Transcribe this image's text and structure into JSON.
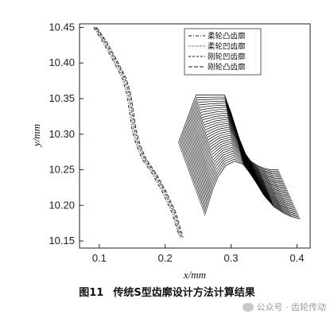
{
  "chart_data": {
    "type": "line",
    "title": "",
    "xlabel": "x/mm",
    "ylabel": "y/mm",
    "xlim": [
      0.07,
      0.42
    ],
    "ylim": [
      10.14,
      10.455
    ],
    "x_ticks": [
      "0.1",
      "0.2",
      "0.3",
      "0.4"
    ],
    "y_ticks": [
      "10.15",
      "10.20",
      "10.25",
      "10.30",
      "10.35",
      "10.40",
      "10.45"
    ],
    "legend_position": "top-right",
    "series": [
      {
        "name": "柔轮凸齿廓",
        "style": "dash-dot",
        "x": [
          0.0915,
          0.105,
          0.12,
          0.135,
          0.142,
          0.146,
          0.15,
          0.156,
          0.165,
          0.18,
          0.195,
          0.21,
          0.222
        ],
        "y": [
          10.45,
          10.43,
          10.405,
          10.378,
          10.355,
          10.33,
          10.305,
          10.285,
          10.265,
          10.245,
          10.22,
          10.19,
          10.155
        ]
      },
      {
        "name": "柔轮凹齿廓",
        "style": "dotted",
        "x": [
          0.093,
          0.107,
          0.122,
          0.137,
          0.144,
          0.148,
          0.152,
          0.158,
          0.167,
          0.182,
          0.197,
          0.212,
          0.223
        ],
        "y": [
          10.45,
          10.43,
          10.405,
          10.378,
          10.355,
          10.33,
          10.305,
          10.285,
          10.265,
          10.245,
          10.22,
          10.19,
          10.155
        ]
      },
      {
        "name": "刚轮凹齿廓",
        "style": "dashed",
        "x": [
          0.0945,
          0.109,
          0.124,
          0.139,
          0.146,
          0.15,
          0.154,
          0.16,
          0.169,
          0.184,
          0.199,
          0.214,
          0.225
        ],
        "y": [
          10.45,
          10.43,
          10.405,
          10.378,
          10.355,
          10.33,
          10.305,
          10.285,
          10.265,
          10.245,
          10.22,
          10.19,
          10.155
        ]
      },
      {
        "name": "刚轮凸齿廓",
        "style": "long-dash",
        "x": [
          0.096,
          0.111,
          0.126,
          0.141,
          0.148,
          0.152,
          0.156,
          0.162,
          0.171,
          0.186,
          0.201,
          0.216,
          0.227
        ],
        "y": [
          10.45,
          10.43,
          10.405,
          10.378,
          10.355,
          10.33,
          10.305,
          10.285,
          10.265,
          10.245,
          10.22,
          10.19,
          10.155
        ]
      }
    ],
    "envelope": {
      "count": 34,
      "template_x": [
        0.22,
        0.24,
        0.247,
        0.27,
        0.29,
        0.3,
        0.312,
        0.322,
        0.33,
        0.34,
        0.35,
        0.36,
        0.372
      ],
      "template_y": [
        10.287,
        10.338,
        10.355,
        10.355,
        10.355,
        10.33,
        10.295,
        10.272,
        10.262,
        10.256,
        10.252,
        10.25,
        10.25
      ],
      "final_x": [
        0.26,
        0.272,
        0.28,
        0.292,
        0.305,
        0.318,
        0.328,
        0.338,
        0.35,
        0.365,
        0.38,
        0.392,
        0.405
      ],
      "final_y": [
        10.186,
        10.222,
        10.24,
        10.256,
        10.262,
        10.258,
        10.246,
        10.232,
        10.214,
        10.198,
        10.189,
        10.184,
        10.181
      ]
    }
  },
  "caption": {
    "number": "图11",
    "text": "传统S型齿廓设计方法计算结果"
  },
  "watermark": "公众号 · 齿轮传动"
}
